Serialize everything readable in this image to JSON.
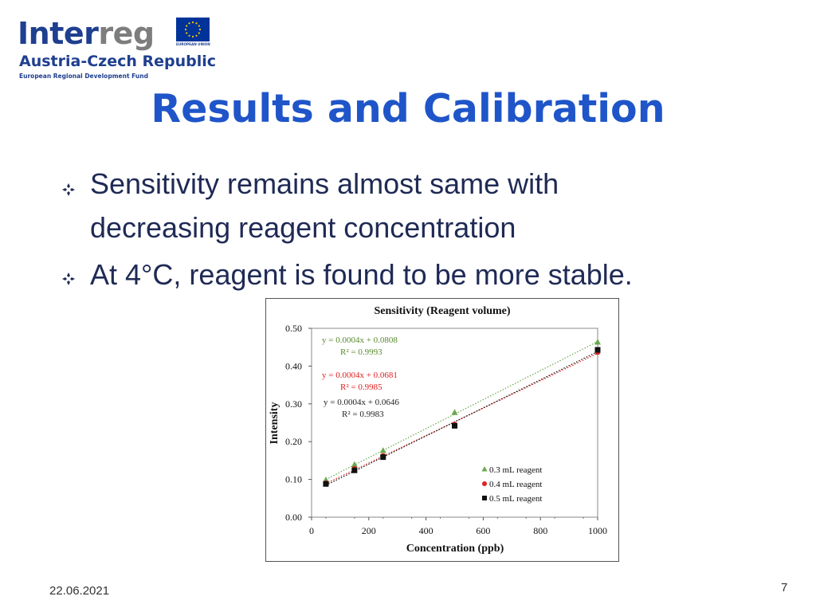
{
  "logo": {
    "word": "Interreg",
    "region": "Austria-Czech Republic",
    "fund": "European Regional Development Fund",
    "eu_caption": "EUROPEAN UNION",
    "colors": {
      "blue": "#1f3f8f",
      "gray": "#7d7d7d",
      "eu_blue": "#003399",
      "eu_gold": "#ffcc00"
    }
  },
  "slide": {
    "title": "Results and Calibration",
    "bullets": [
      {
        "lines": [
          "Sensitivity remains almost same with",
          "decreasing reagent concentration"
        ]
      },
      {
        "lines": [
          "At 4°C, reagent is found to be more stable."
        ]
      }
    ],
    "date": "22.06.2021",
    "page_number": "7"
  },
  "chart_data": {
    "type": "scatter",
    "title": "Sensitivity  (Reagent volume)",
    "xlabel": "Concentration  (ppb)",
    "ylabel": "Intensity",
    "xlim": [
      0,
      1000
    ],
    "ylim": [
      0,
      0.5
    ],
    "xticks": [
      "0",
      "200",
      "400",
      "600",
      "800",
      "1000"
    ],
    "yticks": [
      "0.00",
      "0.10",
      "0.20",
      "0.30",
      "0.40",
      "0.50"
    ],
    "x": [
      50,
      150,
      250,
      500,
      1000
    ],
    "series": [
      {
        "name": "0.3 mL reagent",
        "marker": "triangle",
        "color": "#6aa84f",
        "values": [
          0.098,
          0.139,
          0.176,
          0.277,
          0.463
        ],
        "equation": "y = 0.0004x + 0.0808",
        "r2": "R² = 0.9993"
      },
      {
        "name": "0.4 mL reagent",
        "marker": "circle",
        "color": "#e02020",
        "values": [
          0.09,
          0.128,
          0.162,
          0.245,
          0.437
        ],
        "equation": "y = 0.0004x + 0.0681",
        "r2": "R² = 0.9985"
      },
      {
        "name": "0.5 mL reagent",
        "marker": "square",
        "color": "#111111",
        "values": [
          0.088,
          0.124,
          0.159,
          0.242,
          0.443
        ],
        "equation": "y = 0.0004x + 0.0646",
        "r2": "R² = 0.9983"
      }
    ],
    "equation_colors": [
      "#5a8a2f",
      "#e02020",
      "#222222"
    ],
    "trendline": "linear, dotted",
    "legend_position": "bottom-right",
    "grid": false
  }
}
